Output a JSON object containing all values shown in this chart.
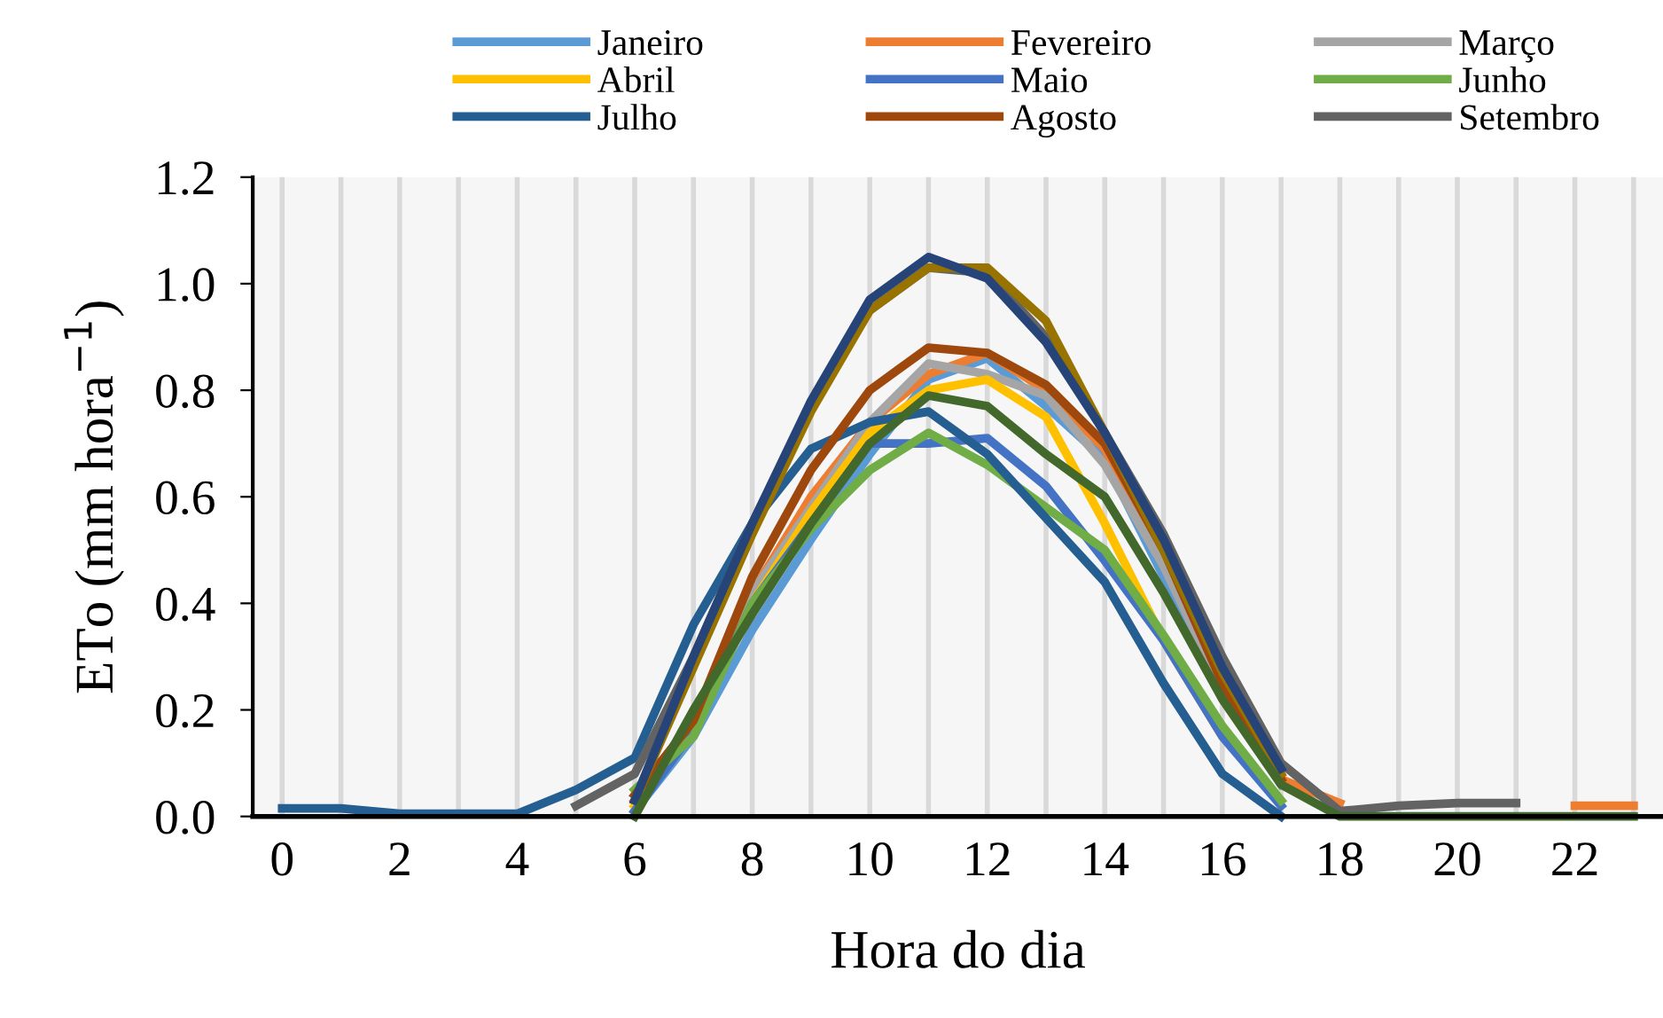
{
  "chart_data": {
    "type": "line",
    "xlabel": "Hora do dia",
    "ylabel": "ETo (mm hora$^{−1}$)",
    "x": [
      0,
      1,
      2,
      3,
      4,
      5,
      6,
      7,
      8,
      9,
      10,
      11,
      12,
      13,
      14,
      15,
      16,
      17,
      18,
      19,
      20,
      21,
      22,
      23
    ],
    "xlim": [
      -0.5,
      23.5
    ],
    "ylim": [
      0,
      1.2
    ],
    "xticks": [
      0,
      {
        "value": 1,
        "label": null
      },
      2,
      {
        "value": 3,
        "label": null
      },
      4,
      {
        "value": 5,
        "label": null
      },
      6,
      {
        "value": 7,
        "label": null
      },
      8,
      {
        "value": 9,
        "label": null
      },
      10,
      {
        "value": 11,
        "label": null
      },
      12,
      {
        "value": 13,
        "label": null
      },
      14,
      {
        "value": 15,
        "label": null
      },
      16,
      {
        "value": 17,
        "label": null
      },
      18,
      {
        "value": 19,
        "label": null
      },
      20,
      {
        "value": 21,
        "label": null
      },
      22,
      {
        "value": 23,
        "label": null
      }
    ],
    "yticks": [
      {
        "value": 0,
        "label": "0.0"
      },
      {
        "value": 0.2,
        "label": "0.2"
      },
      {
        "value": 0.4,
        "label": "0.4"
      },
      {
        "value": 0.6,
        "label": "0.6"
      },
      {
        "value": 0.8,
        "label": "0.8"
      },
      {
        "value": 1.0,
        "label": "1.0"
      },
      {
        "value": 1.2,
        "label": "1.2"
      }
    ],
    "grid": "x",
    "legend": "top",
    "marker": "none",
    "line_style": "solid",
    "series": [
      {
        "name": "Janeiro",
        "color": "#5b9bd5",
        "values": [
          null,
          null,
          null,
          null,
          null,
          null,
          0.01,
          0.15,
          0.35,
          0.52,
          0.68,
          0.82,
          0.86,
          0.77,
          0.67,
          0.45,
          0.24,
          0.06,
          null,
          null,
          null,
          null,
          null,
          null
        ]
      },
      {
        "name": "Fevereiro",
        "color": "#ed7d31",
        "values": [
          null,
          null,
          null,
          null,
          null,
          null,
          0.03,
          0.17,
          0.42,
          0.6,
          0.74,
          0.83,
          0.87,
          0.8,
          0.69,
          0.49,
          0.26,
          0.07,
          0.025,
          null,
          null,
          null,
          0.02,
          0.02
        ]
      },
      {
        "name": "Março",
        "color": "#a5a5a5",
        "values": [
          null,
          null,
          null,
          null,
          null,
          null,
          0.04,
          0.18,
          0.42,
          0.58,
          0.74,
          0.85,
          0.83,
          0.79,
          0.66,
          0.47,
          0.24,
          0.06,
          null,
          null,
          null,
          null,
          null,
          null
        ]
      },
      {
        "name": "Abril",
        "color": "#ffc000",
        "values": [
          null,
          null,
          null,
          null,
          null,
          null,
          0.02,
          0.17,
          0.4,
          0.57,
          0.72,
          0.8,
          0.82,
          0.75,
          0.55,
          0.33,
          0.15,
          0.03,
          null,
          null,
          null,
          null,
          null,
          null
        ]
      },
      {
        "name": "Maio",
        "color": "#4472c4",
        "values": [
          null,
          null,
          null,
          null,
          null,
          null,
          0.01,
          0.16,
          0.4,
          0.55,
          0.7,
          0.7,
          0.71,
          0.62,
          0.48,
          0.33,
          0.15,
          0.02,
          null,
          null,
          null,
          null,
          null,
          null
        ]
      },
      {
        "name": "Junho",
        "color": "#70ad47",
        "values": [
          null,
          null,
          null,
          null,
          null,
          null,
          0.05,
          0.15,
          0.4,
          0.54,
          0.65,
          0.72,
          0.66,
          0.58,
          0.5,
          0.34,
          0.17,
          0.03,
          null,
          null,
          null,
          null,
          null,
          null
        ]
      },
      {
        "name": "Julho",
        "color": "#255e91",
        "values": [
          0.015,
          0.015,
          0.005,
          0.005,
          0.005,
          0.05,
          0.11,
          0.36,
          0.55,
          0.69,
          0.74,
          0.76,
          0.68,
          0.56,
          0.44,
          0.25,
          0.08,
          0.0,
          null,
          null,
          null,
          null,
          null,
          null
        ]
      },
      {
        "name": "Agosto",
        "color": "#9e480e",
        "values": [
          null,
          null,
          null,
          null,
          null,
          null,
          0.04,
          0.18,
          0.45,
          0.65,
          0.8,
          0.88,
          0.87,
          0.81,
          0.7,
          0.5,
          0.25,
          0.07,
          null,
          null,
          null,
          null,
          null,
          null
        ]
      },
      {
        "name": "Setembro",
        "color": "#636363",
        "values": [
          null,
          null,
          null,
          null,
          null,
          0.02,
          0.08,
          0.3,
          0.55,
          0.77,
          0.95,
          1.03,
          1.02,
          0.9,
          0.72,
          0.53,
          0.3,
          0.1,
          0.01,
          0.02,
          0.025,
          0.025,
          null,
          null
        ]
      },
      {
        "color": "#997300",
        "values": [
          null,
          null,
          null,
          null,
          null,
          null,
          0.03,
          0.28,
          0.53,
          0.76,
          0.95,
          1.03,
          1.03,
          0.93,
          0.72,
          0.5,
          0.27,
          0.08,
          null,
          null,
          null,
          null,
          null,
          null
        ]
      },
      {
        "color": "#264478",
        "values": [
          null,
          null,
          null,
          null,
          null,
          null,
          0.03,
          0.3,
          0.55,
          0.78,
          0.97,
          1.05,
          1.01,
          0.89,
          0.72,
          0.52,
          0.28,
          0.09,
          null,
          null,
          null,
          null,
          null,
          null
        ]
      },
      {
        "color": "#43682b",
        "values": [
          null,
          null,
          null,
          null,
          null,
          null,
          0,
          0.2,
          0.38,
          0.55,
          0.7,
          0.79,
          0.77,
          0.68,
          0.6,
          0.42,
          0.22,
          0.06,
          0,
          0,
          0,
          0,
          0,
          0
        ]
      }
    ]
  }
}
